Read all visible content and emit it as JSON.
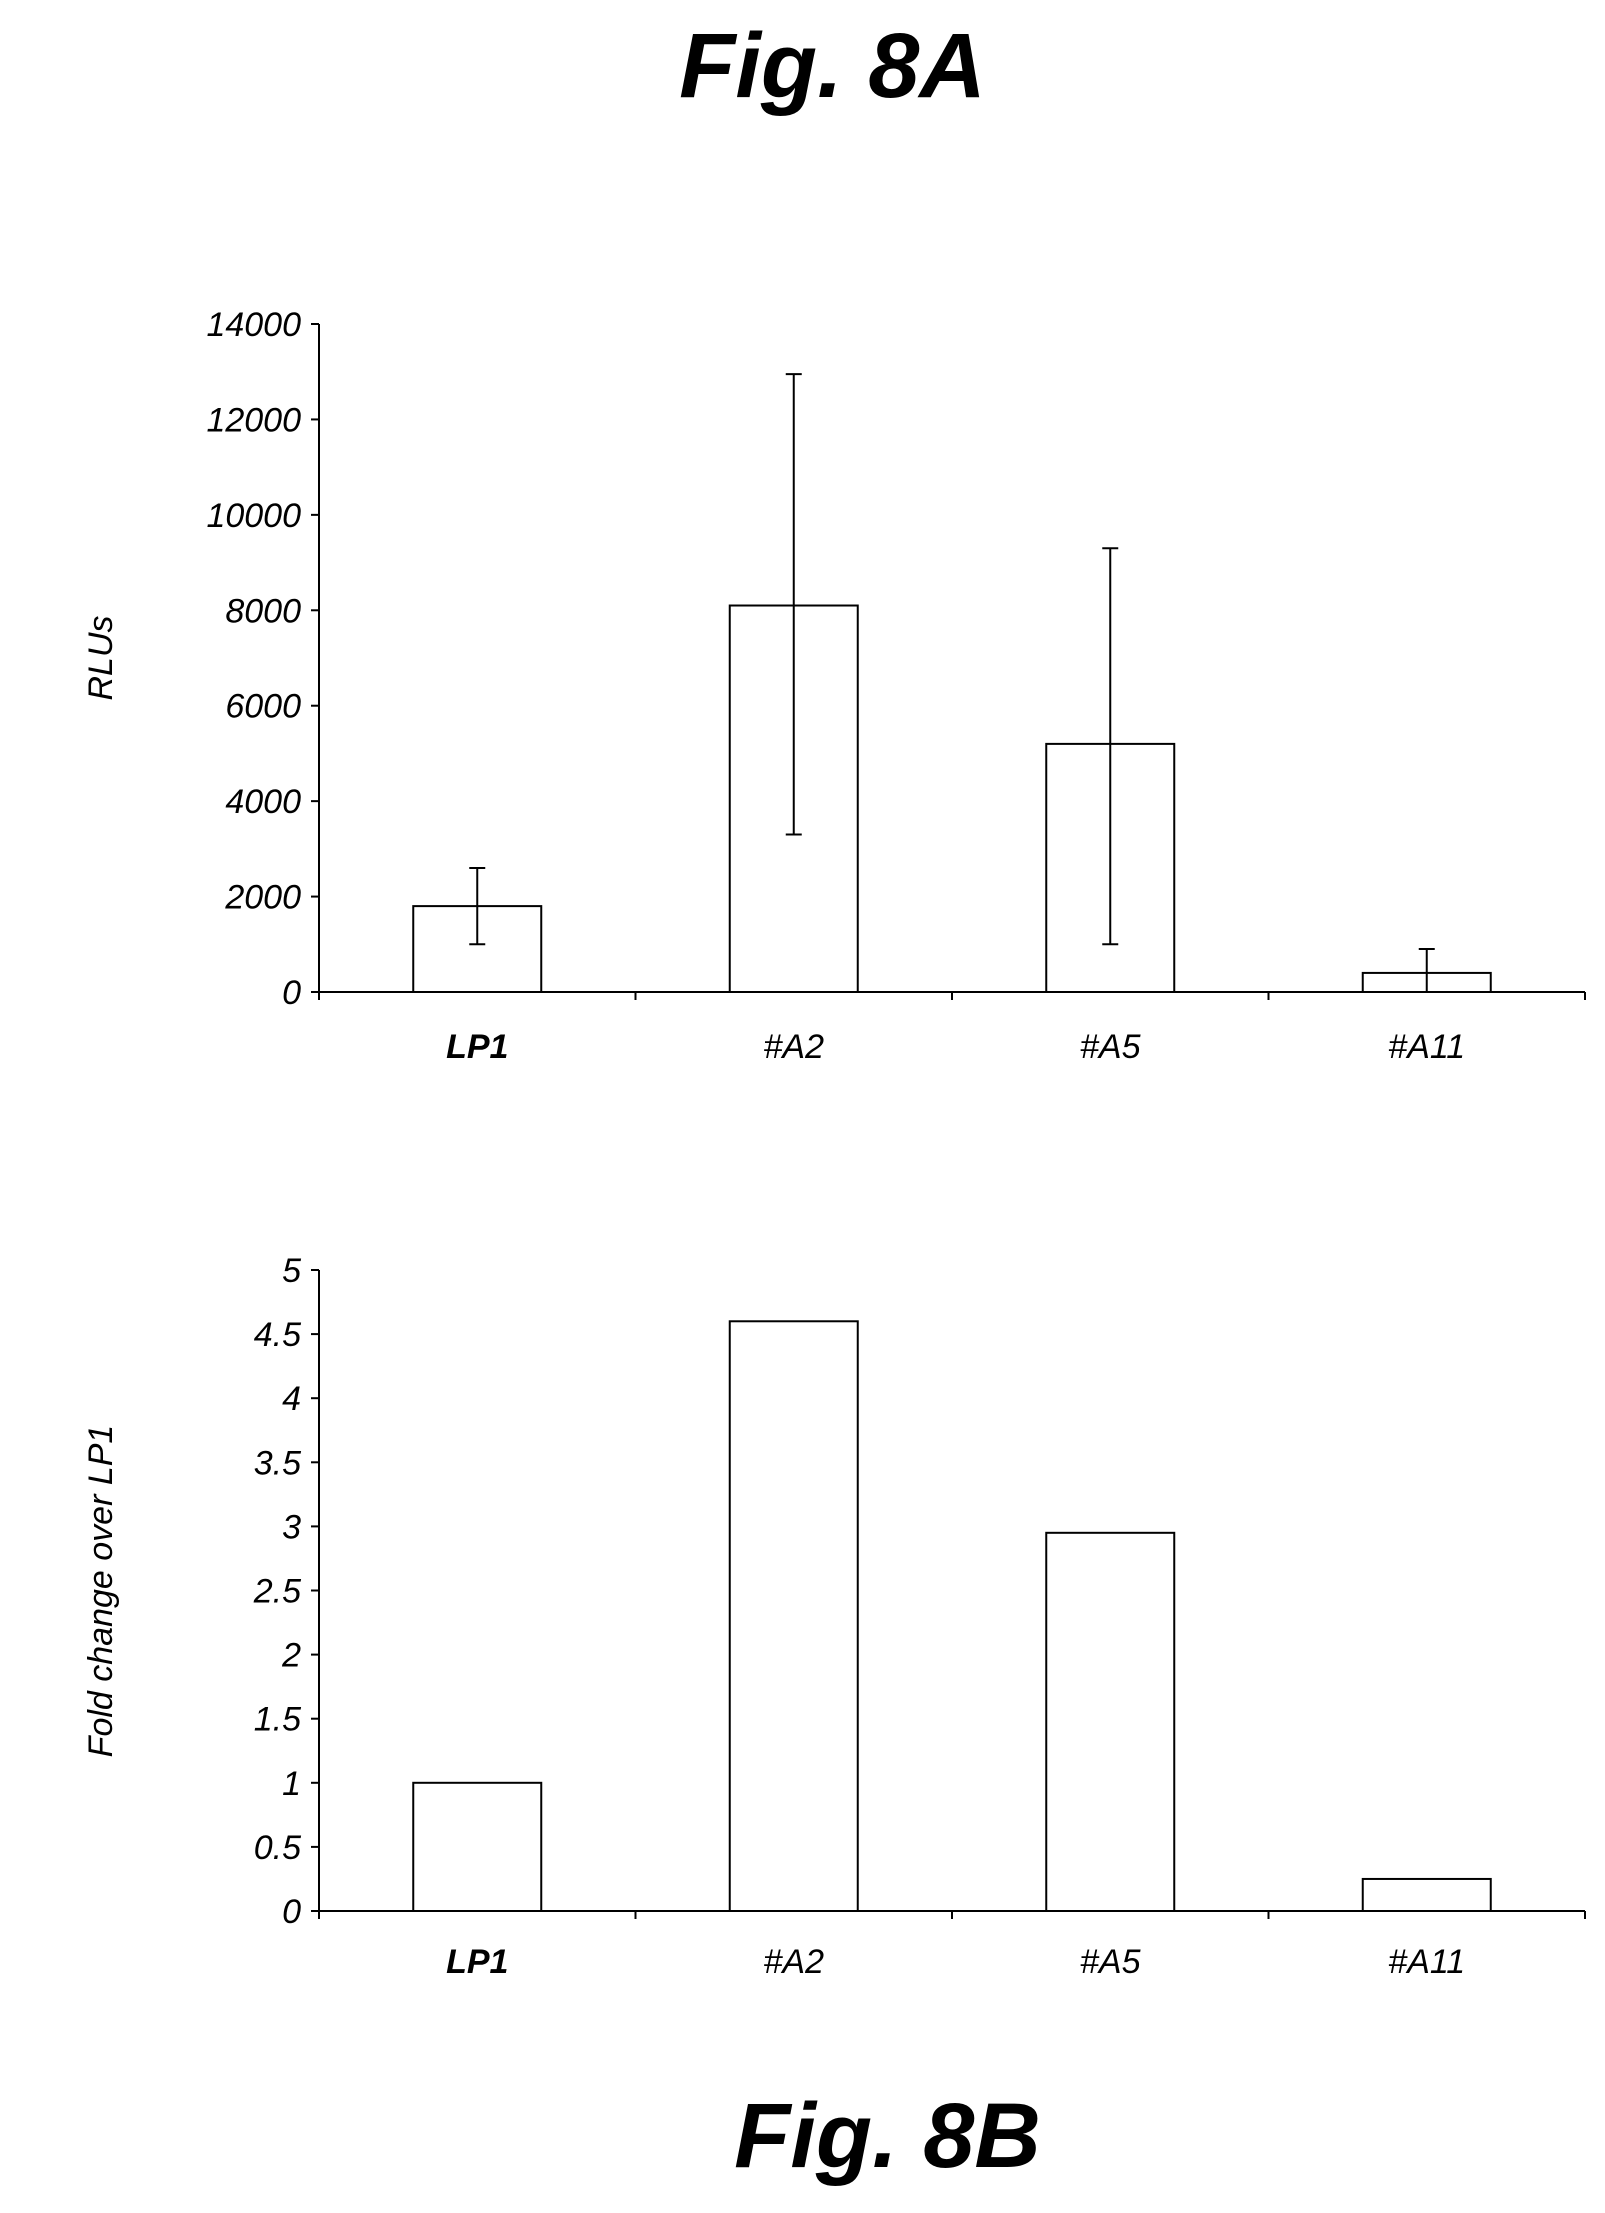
{
  "figure_labels": {
    "a": "Fig. 8A",
    "b": "Fig. 8B"
  },
  "chart_data": [
    {
      "type": "bar",
      "categories": [
        "LP1",
        "#A2",
        "#A5",
        "#A11"
      ],
      "bold_categories": [
        "LP1"
      ],
      "values": [
        1800,
        8100,
        5200,
        400
      ],
      "error_bars": [
        {
          "low": 1000,
          "high": 2600
        },
        {
          "low": 3300,
          "high": 12950
        },
        {
          "low": 1000,
          "high": 9300
        },
        {
          "low": 0,
          "high": 900
        }
      ],
      "ylabel": "RLUs",
      "ylim": [
        0,
        14000
      ],
      "yticks": [
        "0",
        "2000",
        "4000",
        "6000",
        "8000",
        "10000",
        "12000",
        "14000"
      ],
      "grid": false,
      "bar_fill": "#ffffff"
    },
    {
      "type": "bar",
      "categories": [
        "LP1",
        "#A2",
        "#A5",
        "#A11"
      ],
      "bold_categories": [
        "LP1"
      ],
      "values": [
        1.0,
        4.6,
        2.95,
        0.25
      ],
      "ylabel": "Fold change over LP1",
      "ylim": [
        0,
        5
      ],
      "yticks": [
        "0",
        "0.5",
        "1",
        "1.5",
        "2",
        "2.5",
        "3",
        "3.5",
        "4",
        "4.5",
        "5"
      ],
      "grid": false,
      "bar_fill": "#ffffff"
    }
  ]
}
